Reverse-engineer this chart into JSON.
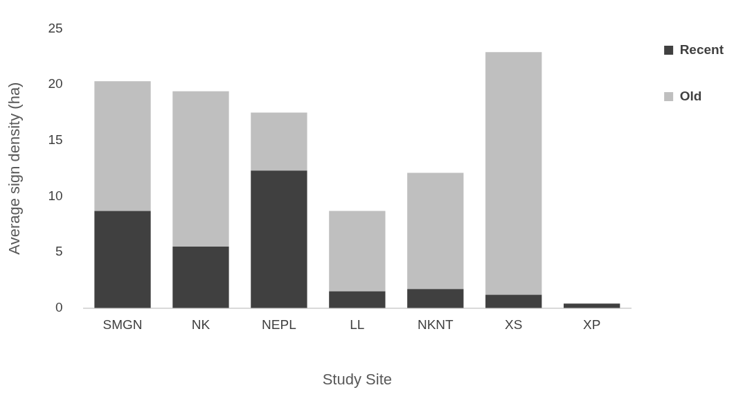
{
  "chart_data": {
    "type": "bar",
    "xlabel": "Study Site",
    "ylabel": "Average sign density (ha)",
    "categories": [
      "SMGN",
      "NK",
      "NEPL",
      "LL",
      "NKNT",
      "XS",
      "XP"
    ],
    "series": [
      {
        "name": "Recent",
        "color": "#404040",
        "values": [
          8.7,
          5.5,
          12.3,
          1.5,
          1.7,
          1.2,
          0.4
        ]
      },
      {
        "name": "Old",
        "color": "#bfbfbf",
        "values": [
          11.6,
          13.9,
          5.2,
          7.2,
          10.4,
          21.7,
          0
        ]
      }
    ],
    "stacked": true,
    "ylim": [
      0,
      25
    ],
    "yticks": [
      0,
      5,
      10,
      15,
      20,
      25
    ],
    "grid": false,
    "legend": "top right"
  }
}
